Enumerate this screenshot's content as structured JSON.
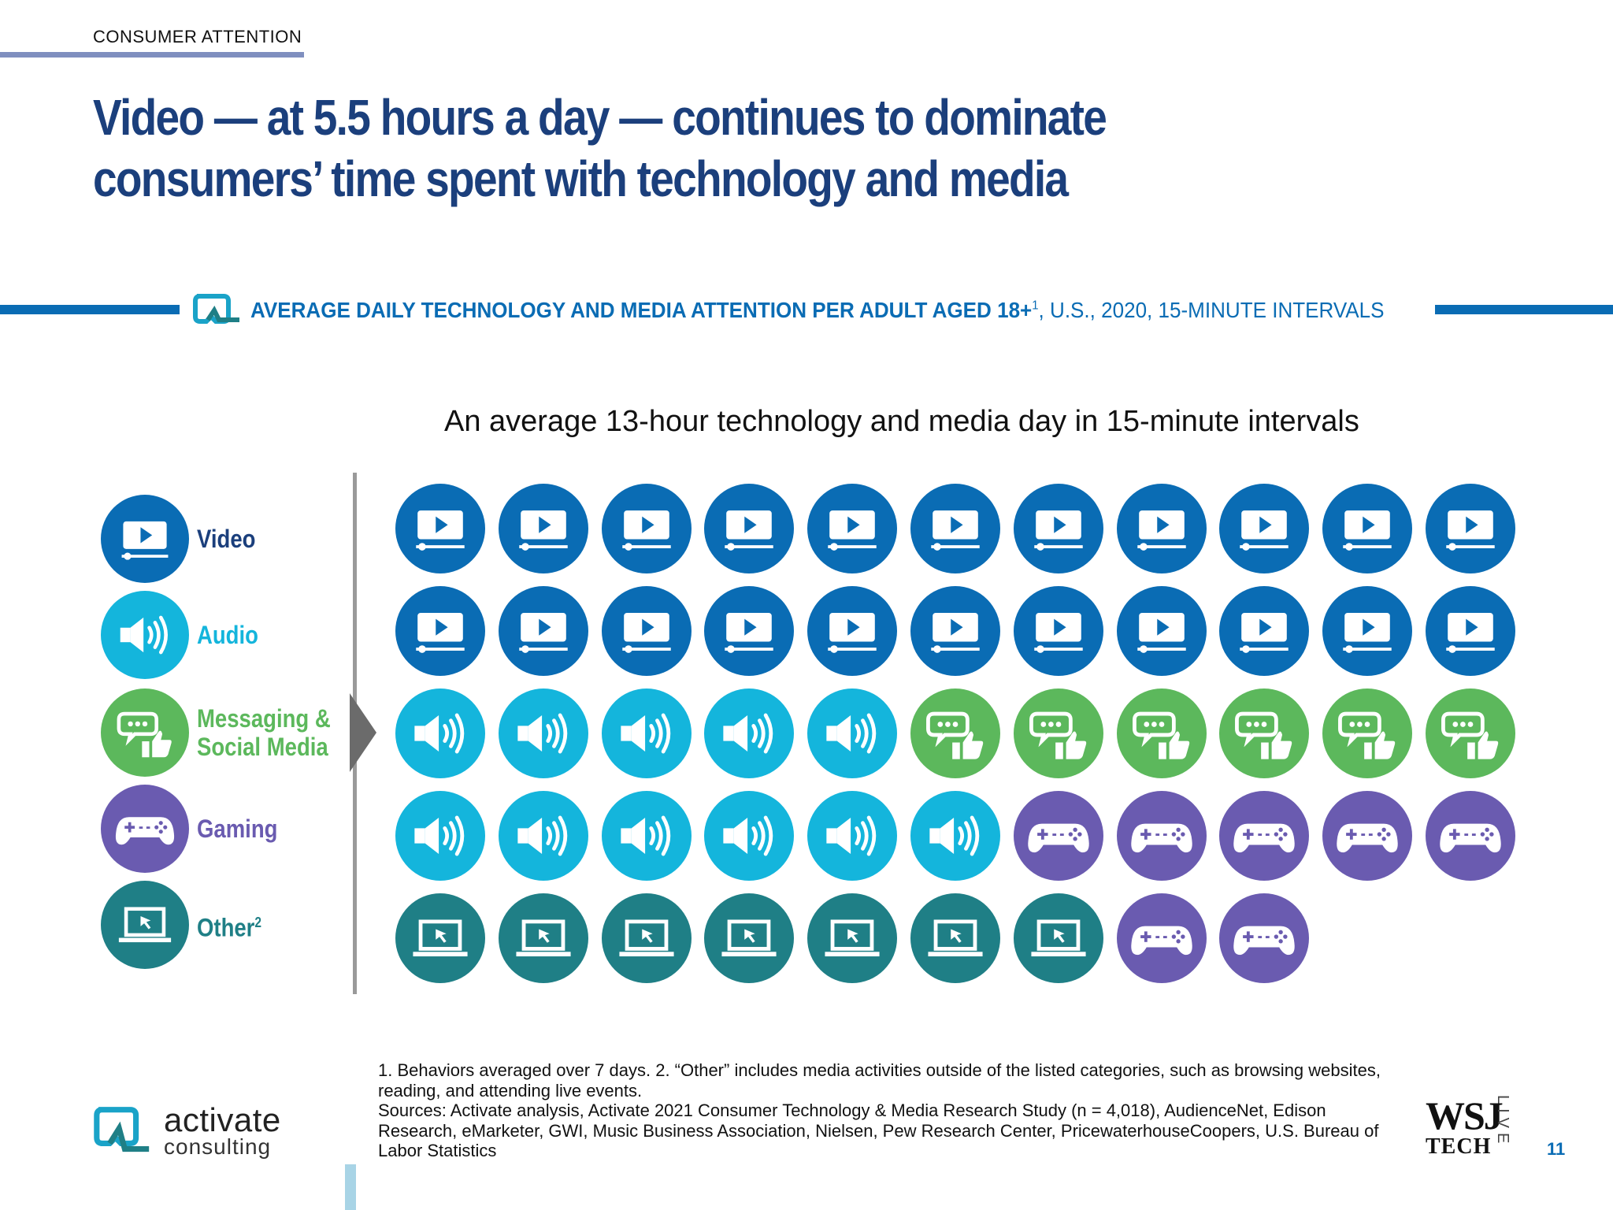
{
  "section": {
    "label": "CONSUMER ATTENTION"
  },
  "headline": "Video — at 5.5 hours a day — continues to dominate consumers’ time spent with technology and media",
  "banner": {
    "bold_text": "AVERAGE DAILY TECHNOLOGY AND MEDIA ATTENTION PER ADULT AGED 18+",
    "superscript": "1",
    "rest_text": ", U.S., 2020, 15-MINUTE INTERVALS",
    "accent_color": "#0a6cb4"
  },
  "chart_data": {
    "type": "table",
    "title": "An average 13-hour technology and media day in 15-minute intervals",
    "unit": "15-minute intervals",
    "grid_columns": 11,
    "categories": [
      {
        "key": "video",
        "label": "Video",
        "color": "#0a6cb4",
        "label_color": "#1b3f7c",
        "icon": "video-player-icon",
        "intervals": 22
      },
      {
        "key": "audio",
        "label": "Audio",
        "color": "#14b5dc",
        "label_color": "#14b5dc",
        "icon": "speaker-icon",
        "intervals": 11
      },
      {
        "key": "messaging",
        "label": "Messaging & Social Media",
        "color": "#5cb85c",
        "label_color": "#5cb85c",
        "icon": "chat-thumbs-up-icon",
        "intervals": 6
      },
      {
        "key": "gaming",
        "label": "Gaming",
        "color": "#6a5bb0",
        "label_color": "#6a5bb0",
        "icon": "game-controller-icon",
        "intervals": 7
      },
      {
        "key": "other",
        "label": "Other",
        "label_sup": "2",
        "color": "#1f7f86",
        "label_color": "#1f7f86",
        "icon": "laptop-cursor-icon",
        "intervals": 7
      }
    ],
    "rows": [
      [
        "video",
        "video",
        "video",
        "video",
        "video",
        "video",
        "video",
        "video",
        "video",
        "video",
        "video"
      ],
      [
        "video",
        "video",
        "video",
        "video",
        "video",
        "video",
        "video",
        "video",
        "video",
        "video",
        "video"
      ],
      [
        "audio",
        "audio",
        "audio",
        "audio",
        "audio",
        "messaging",
        "messaging",
        "messaging",
        "messaging",
        "messaging",
        "messaging"
      ],
      [
        "audio",
        "audio",
        "audio",
        "audio",
        "audio",
        "audio",
        "gaming",
        "gaming",
        "gaming",
        "gaming",
        "gaming"
      ],
      [
        "other",
        "other",
        "other",
        "other",
        "other",
        "other",
        "other",
        "gaming",
        "gaming"
      ]
    ]
  },
  "footnotes": {
    "line1": "1. Behaviors averaged over 7 days.  2. “Other” includes media activities outside of the listed categories, such as browsing websites, reading, and attending live events.",
    "sources": "Sources: Activate analysis, Activate 2021 Consumer Technology & Media Research Study (n = 4,018), AudienceNet, Edison Research, eMarketer, GWI, Music Business Association, Nielsen, Pew Research Center, PricewaterhouseCoopers, U.S. Bureau of Labor Statistics"
  },
  "logo": {
    "name": "activate",
    "sub": "consulting"
  },
  "wsj": {
    "main": "WSJ",
    "tech": "TECH",
    "live": "LIVE"
  },
  "page_number": "11"
}
